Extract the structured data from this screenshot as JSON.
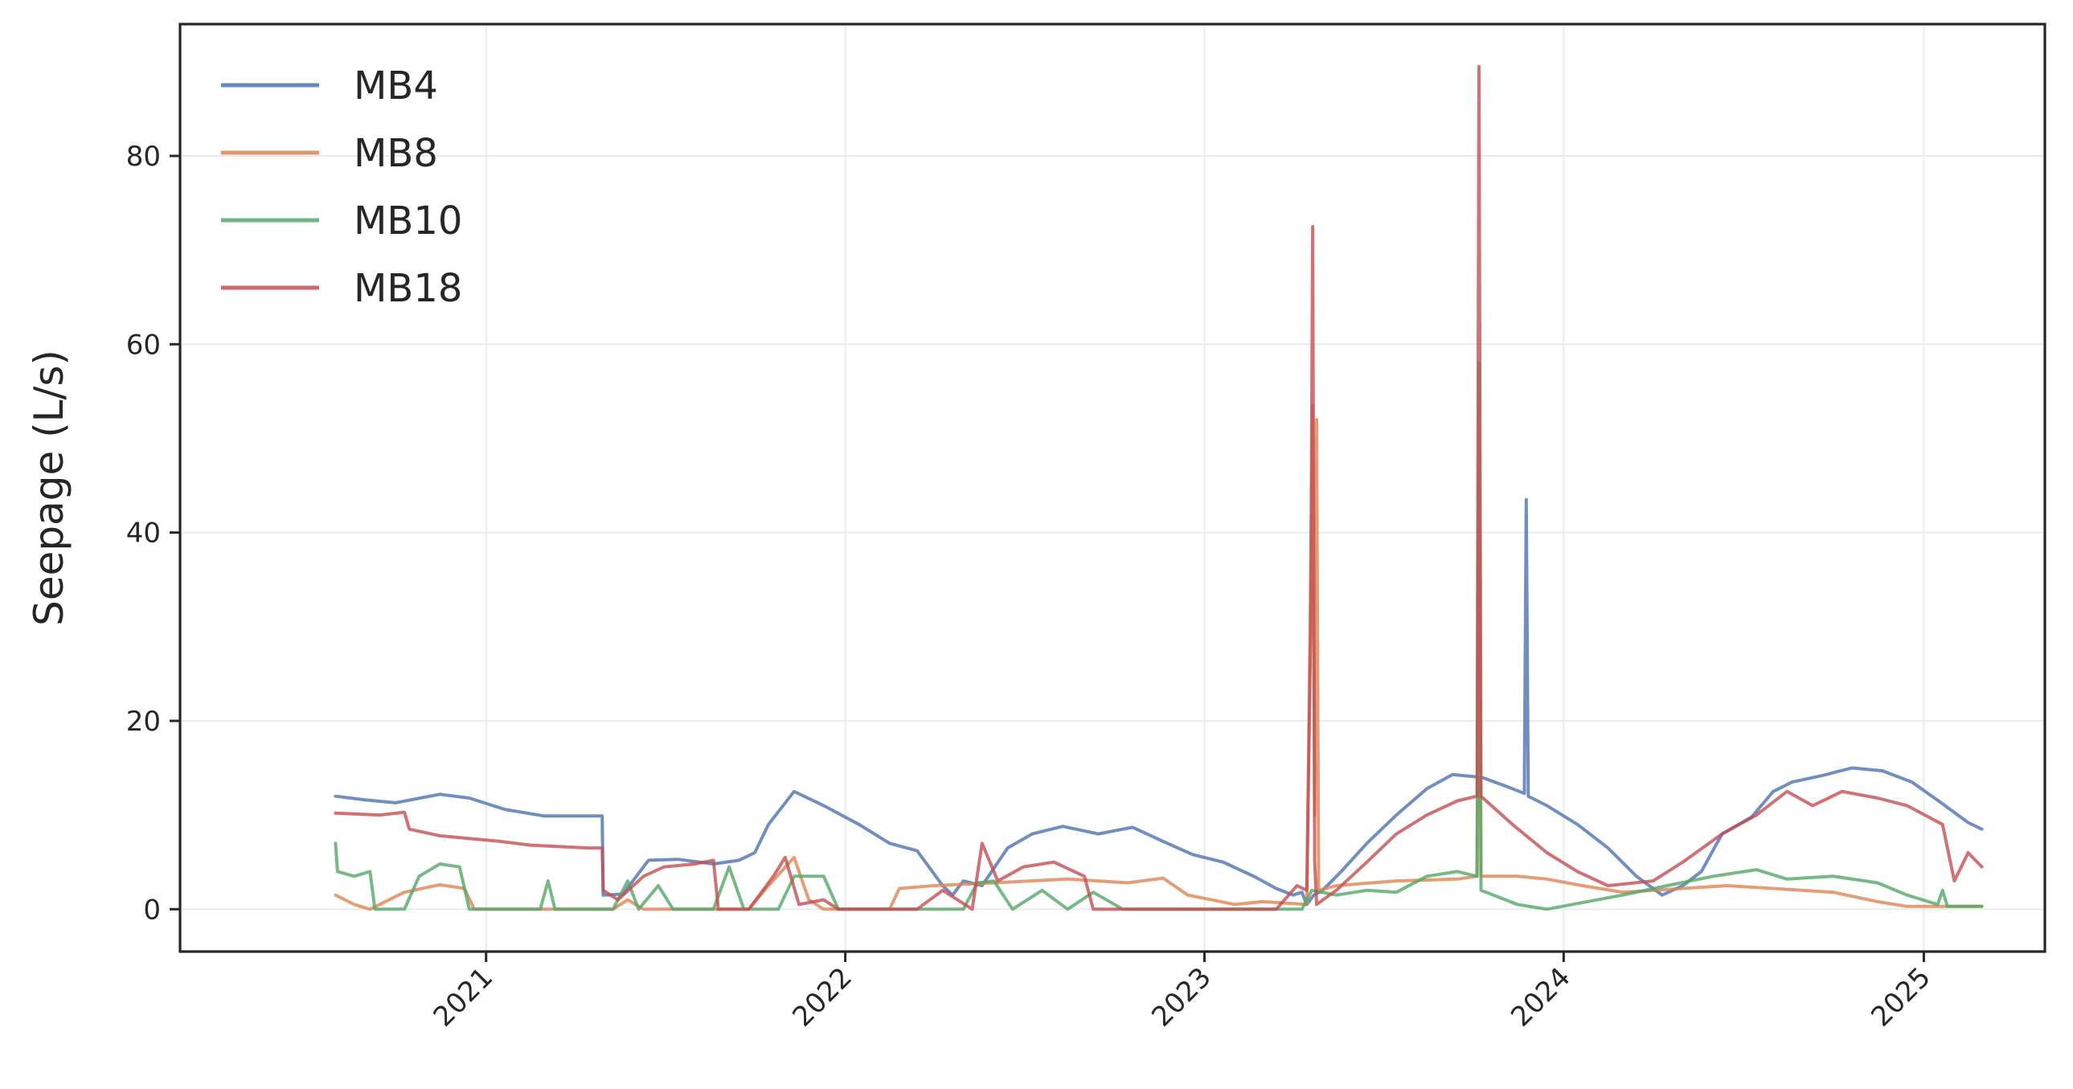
{
  "chart_data": {
    "type": "line",
    "title": "",
    "xlabel": "",
    "ylabel": "Seepage (L/s)",
    "xlim": [
      "2020-02-25",
      "2025-05-04"
    ],
    "ylim": [
      -4.5,
      94
    ],
    "x_ticks": [
      "2021-01-01",
      "2022-01-01",
      "2023-01-01",
      "2024-01-01",
      "2025-01-01"
    ],
    "x_tick_labels": [
      "2021",
      "2022",
      "2023",
      "2024",
      "2025"
    ],
    "y_ticks": [
      0,
      20,
      40,
      60,
      80
    ],
    "y_tick_labels": [
      "0",
      "20",
      "40",
      "60",
      "80"
    ],
    "grid": true,
    "legend_position": "top-left",
    "series": [
      {
        "name": "MB4",
        "color": "#4C72B0",
        "points": [
          [
            "2020-08-01",
            12
          ],
          [
            "2020-09-01",
            11.6
          ],
          [
            "2020-10-01",
            11.3
          ],
          [
            "2020-11-15",
            12.2
          ],
          [
            "2020-12-15",
            11.8
          ],
          [
            "2021-01-20",
            10.6
          ],
          [
            "2021-03-01",
            9.9
          ],
          [
            "2021-04-29",
            9.9
          ],
          [
            "2021-04-30",
            1.5
          ],
          [
            "2021-05-20",
            1.6
          ],
          [
            "2021-06-15",
            5.2
          ],
          [
            "2021-07-15",
            5.3
          ],
          [
            "2021-08-20",
            4.8
          ],
          [
            "2021-09-15",
            5.2
          ],
          [
            "2021-10-01",
            6
          ],
          [
            "2021-10-15",
            9
          ],
          [
            "2021-11-10",
            12.5
          ],
          [
            "2021-12-10",
            11
          ],
          [
            "2022-01-15",
            9
          ],
          [
            "2022-02-15",
            7
          ],
          [
            "2022-03-15",
            6.2
          ],
          [
            "2022-04-10",
            2.5
          ],
          [
            "2022-04-20",
            1.5
          ],
          [
            "2022-05-01",
            3
          ],
          [
            "2022-05-20",
            2.5
          ],
          [
            "2022-06-15",
            6.5
          ],
          [
            "2022-07-10",
            8
          ],
          [
            "2022-08-10",
            8.8
          ],
          [
            "2022-09-15",
            8
          ],
          [
            "2022-10-20",
            8.7
          ],
          [
            "2022-11-20",
            7.2
          ],
          [
            "2022-12-20",
            5.8
          ],
          [
            "2023-01-20",
            5
          ],
          [
            "2023-02-20",
            3.5
          ],
          [
            "2023-03-15",
            2.2
          ],
          [
            "2023-04-01",
            1.5
          ],
          [
            "2023-04-10",
            1.8
          ],
          [
            "2023-04-15",
            0.5
          ],
          [
            "2023-04-22",
            1.5
          ],
          [
            "2023-05-01",
            2
          ],
          [
            "2023-05-20",
            4
          ],
          [
            "2023-06-15",
            7
          ],
          [
            "2023-07-15",
            10
          ],
          [
            "2023-08-15",
            12.8
          ],
          [
            "2023-09-10",
            14.3
          ],
          [
            "2023-10-10",
            14
          ],
          [
            "2023-11-05",
            13
          ],
          [
            "2023-11-22",
            12.3
          ],
          [
            "2023-11-24",
            43.5
          ],
          [
            "2023-11-26",
            12
          ],
          [
            "2023-12-15",
            11
          ],
          [
            "2024-01-15",
            9
          ],
          [
            "2024-02-15",
            6.5
          ],
          [
            "2024-03-15",
            3.5
          ],
          [
            "2024-04-10",
            1.5
          ],
          [
            "2024-05-01",
            2.5
          ],
          [
            "2024-05-20",
            4
          ],
          [
            "2024-06-10",
            8
          ],
          [
            "2024-07-10",
            9.8
          ],
          [
            "2024-08-01",
            12.5
          ],
          [
            "2024-08-20",
            13.5
          ],
          [
            "2024-09-20",
            14.2
          ],
          [
            "2024-10-20",
            15
          ],
          [
            "2024-11-20",
            14.7
          ],
          [
            "2024-12-20",
            13.5
          ],
          [
            "2025-01-20",
            11.2
          ],
          [
            "2025-02-15",
            9.2
          ],
          [
            "2025-03-01",
            8.5
          ]
        ]
      },
      {
        "name": "MB8",
        "color": "#DD8452",
        "points": [
          [
            "2020-08-01",
            1.5
          ],
          [
            "2020-08-20",
            0.5
          ],
          [
            "2020-09-05",
            0
          ],
          [
            "2020-10-10",
            1.8
          ],
          [
            "2020-11-15",
            2.6
          ],
          [
            "2020-12-10",
            2.2
          ],
          [
            "2020-12-20",
            0
          ],
          [
            "2021-05-10",
            0
          ],
          [
            "2021-05-25",
            1
          ],
          [
            "2021-06-10",
            0
          ],
          [
            "2021-09-25",
            0
          ],
          [
            "2021-10-15",
            2.5
          ],
          [
            "2021-11-10",
            5.5
          ],
          [
            "2021-11-25",
            1
          ],
          [
            "2021-12-10",
            0
          ],
          [
            "2022-02-15",
            0
          ],
          [
            "2022-02-25",
            2.2
          ],
          [
            "2022-04-01",
            2.5
          ],
          [
            "2022-06-01",
            2.8
          ],
          [
            "2022-08-15",
            3.2
          ],
          [
            "2022-10-15",
            2.8
          ],
          [
            "2022-11-20",
            3.3
          ],
          [
            "2022-12-15",
            1.5
          ],
          [
            "2023-02-01",
            0.5
          ],
          [
            "2023-03-01",
            0.8
          ],
          [
            "2023-04-15",
            0.5
          ],
          [
            "2023-04-21",
            53.5
          ],
          [
            "2023-04-23",
            10
          ],
          [
            "2023-04-25",
            52
          ],
          [
            "2023-04-27",
            2
          ],
          [
            "2023-05-15",
            2.5
          ],
          [
            "2023-07-15",
            3
          ],
          [
            "2023-09-15",
            3.2
          ],
          [
            "2023-10-05",
            3.5
          ],
          [
            "2023-10-07",
            46.5
          ],
          [
            "2023-10-09",
            3.5
          ],
          [
            "2023-11-15",
            3.5
          ],
          [
            "2023-12-15",
            3.2
          ],
          [
            "2024-01-20",
            2.5
          ],
          [
            "2024-03-01",
            1.8
          ],
          [
            "2024-05-01",
            2.2
          ],
          [
            "2024-06-15",
            2.5
          ],
          [
            "2024-08-01",
            2.2
          ],
          [
            "2024-10-01",
            1.8
          ],
          [
            "2024-11-15",
            0.8
          ],
          [
            "2024-12-15",
            0.3
          ],
          [
            "2025-03-01",
            0.3
          ]
        ]
      },
      {
        "name": "MB10",
        "color": "#55A868",
        "points": [
          [
            "2020-08-01",
            7
          ],
          [
            "2020-08-03",
            4
          ],
          [
            "2020-08-20",
            3.5
          ],
          [
            "2020-09-05",
            4
          ],
          [
            "2020-09-10",
            0
          ],
          [
            "2020-10-10",
            0
          ],
          [
            "2020-10-25",
            3.5
          ],
          [
            "2020-11-15",
            4.8
          ],
          [
            "2020-12-05",
            4.5
          ],
          [
            "2020-12-15",
            0
          ],
          [
            "2021-02-25",
            0
          ],
          [
            "2021-03-05",
            3
          ],
          [
            "2021-03-12",
            0
          ],
          [
            "2021-05-10",
            0
          ],
          [
            "2021-05-25",
            3
          ],
          [
            "2021-06-05",
            0
          ],
          [
            "2021-06-25",
            2.5
          ],
          [
            "2021-07-10",
            0
          ],
          [
            "2021-08-20",
            0
          ],
          [
            "2021-09-05",
            4.5
          ],
          [
            "2021-09-20",
            0
          ],
          [
            "2021-10-25",
            0
          ],
          [
            "2021-11-10",
            3.5
          ],
          [
            "2021-12-10",
            3.5
          ],
          [
            "2021-12-25",
            0
          ],
          [
            "2022-05-01",
            0
          ],
          [
            "2022-05-15",
            2.8
          ],
          [
            "2022-06-01",
            3
          ],
          [
            "2022-06-20",
            0
          ],
          [
            "2022-07-20",
            2
          ],
          [
            "2022-08-15",
            0
          ],
          [
            "2022-09-10",
            1.8
          ],
          [
            "2022-10-10",
            0
          ],
          [
            "2023-04-10",
            0
          ],
          [
            "2023-04-20",
            2
          ],
          [
            "2023-05-15",
            1.5
          ],
          [
            "2023-06-15",
            2
          ],
          [
            "2023-07-15",
            1.8
          ],
          [
            "2023-08-15",
            3.5
          ],
          [
            "2023-09-15",
            4
          ],
          [
            "2023-10-05",
            3.5
          ],
          [
            "2023-10-07",
            58
          ],
          [
            "2023-10-09",
            2
          ],
          [
            "2023-11-15",
            0.5
          ],
          [
            "2023-12-15",
            0
          ],
          [
            "2024-03-01",
            1.5
          ],
          [
            "2024-04-15",
            2.5
          ],
          [
            "2024-06-01",
            3.5
          ],
          [
            "2024-07-15",
            4.2
          ],
          [
            "2024-08-15",
            3.2
          ],
          [
            "2024-10-01",
            3.5
          ],
          [
            "2024-11-15",
            2.8
          ],
          [
            "2024-12-15",
            1.5
          ],
          [
            "2025-01-15",
            0.5
          ],
          [
            "2025-01-20",
            2
          ],
          [
            "2025-01-25",
            0.3
          ],
          [
            "2025-03-01",
            0.3
          ]
        ]
      },
      {
        "name": "MB18",
        "color": "#C44E52",
        "points": [
          [
            "2020-08-01",
            10.2
          ],
          [
            "2020-09-15",
            10
          ],
          [
            "2020-10-10",
            10.3
          ],
          [
            "2020-10-15",
            8.5
          ],
          [
            "2020-11-15",
            7.8
          ],
          [
            "2020-12-15",
            7.5
          ],
          [
            "2021-01-15",
            7.2
          ],
          [
            "2021-02-15",
            6.8
          ],
          [
            "2021-04-15",
            6.5
          ],
          [
            "2021-04-29",
            6.5
          ],
          [
            "2021-04-30",
            2
          ],
          [
            "2021-05-15",
            1
          ],
          [
            "2021-06-10",
            3.5
          ],
          [
            "2021-07-01",
            4.5
          ],
          [
            "2021-08-01",
            4.8
          ],
          [
            "2021-08-20",
            5.2
          ],
          [
            "2021-08-25",
            0
          ],
          [
            "2021-09-25",
            0
          ],
          [
            "2021-10-20",
            3.5
          ],
          [
            "2021-11-01",
            5.5
          ],
          [
            "2021-11-15",
            0.5
          ],
          [
            "2021-12-10",
            1
          ],
          [
            "2021-12-25",
            0
          ],
          [
            "2022-03-15",
            0
          ],
          [
            "2022-04-10",
            2
          ],
          [
            "2022-04-25",
            1
          ],
          [
            "2022-05-10",
            0
          ],
          [
            "2022-05-20",
            7
          ],
          [
            "2022-06-05",
            3
          ],
          [
            "2022-07-01",
            4.5
          ],
          [
            "2022-08-01",
            5
          ],
          [
            "2022-09-01",
            3.5
          ],
          [
            "2022-09-10",
            0
          ],
          [
            "2023-03-15",
            0
          ],
          [
            "2023-04-05",
            2.5
          ],
          [
            "2023-04-15",
            2
          ],
          [
            "2023-04-19",
            30
          ],
          [
            "2023-04-21",
            72.5
          ],
          [
            "2023-04-23",
            5
          ],
          [
            "2023-04-25",
            0.5
          ],
          [
            "2023-05-15",
            2
          ],
          [
            "2023-06-15",
            5
          ],
          [
            "2023-07-15",
            8
          ],
          [
            "2023-08-15",
            10
          ],
          [
            "2023-09-15",
            11.5
          ],
          [
            "2023-10-05",
            12
          ],
          [
            "2023-10-07",
            89.5
          ],
          [
            "2023-10-09",
            12
          ],
          [
            "2023-11-10",
            9
          ],
          [
            "2023-12-15",
            6
          ],
          [
            "2024-01-15",
            4
          ],
          [
            "2024-02-15",
            2.5
          ],
          [
            "2024-04-01",
            3
          ],
          [
            "2024-05-01",
            5
          ],
          [
            "2024-06-10",
            8
          ],
          [
            "2024-07-15",
            10
          ],
          [
            "2024-08-15",
            12.5
          ],
          [
            "2024-09-10",
            11
          ],
          [
            "2024-10-10",
            12.5
          ],
          [
            "2024-11-15",
            11.8
          ],
          [
            "2024-12-15",
            11
          ],
          [
            "2025-01-20",
            9
          ],
          [
            "2025-02-01",
            3
          ],
          [
            "2025-02-15",
            6
          ],
          [
            "2025-03-01",
            4.5
          ]
        ]
      }
    ]
  }
}
